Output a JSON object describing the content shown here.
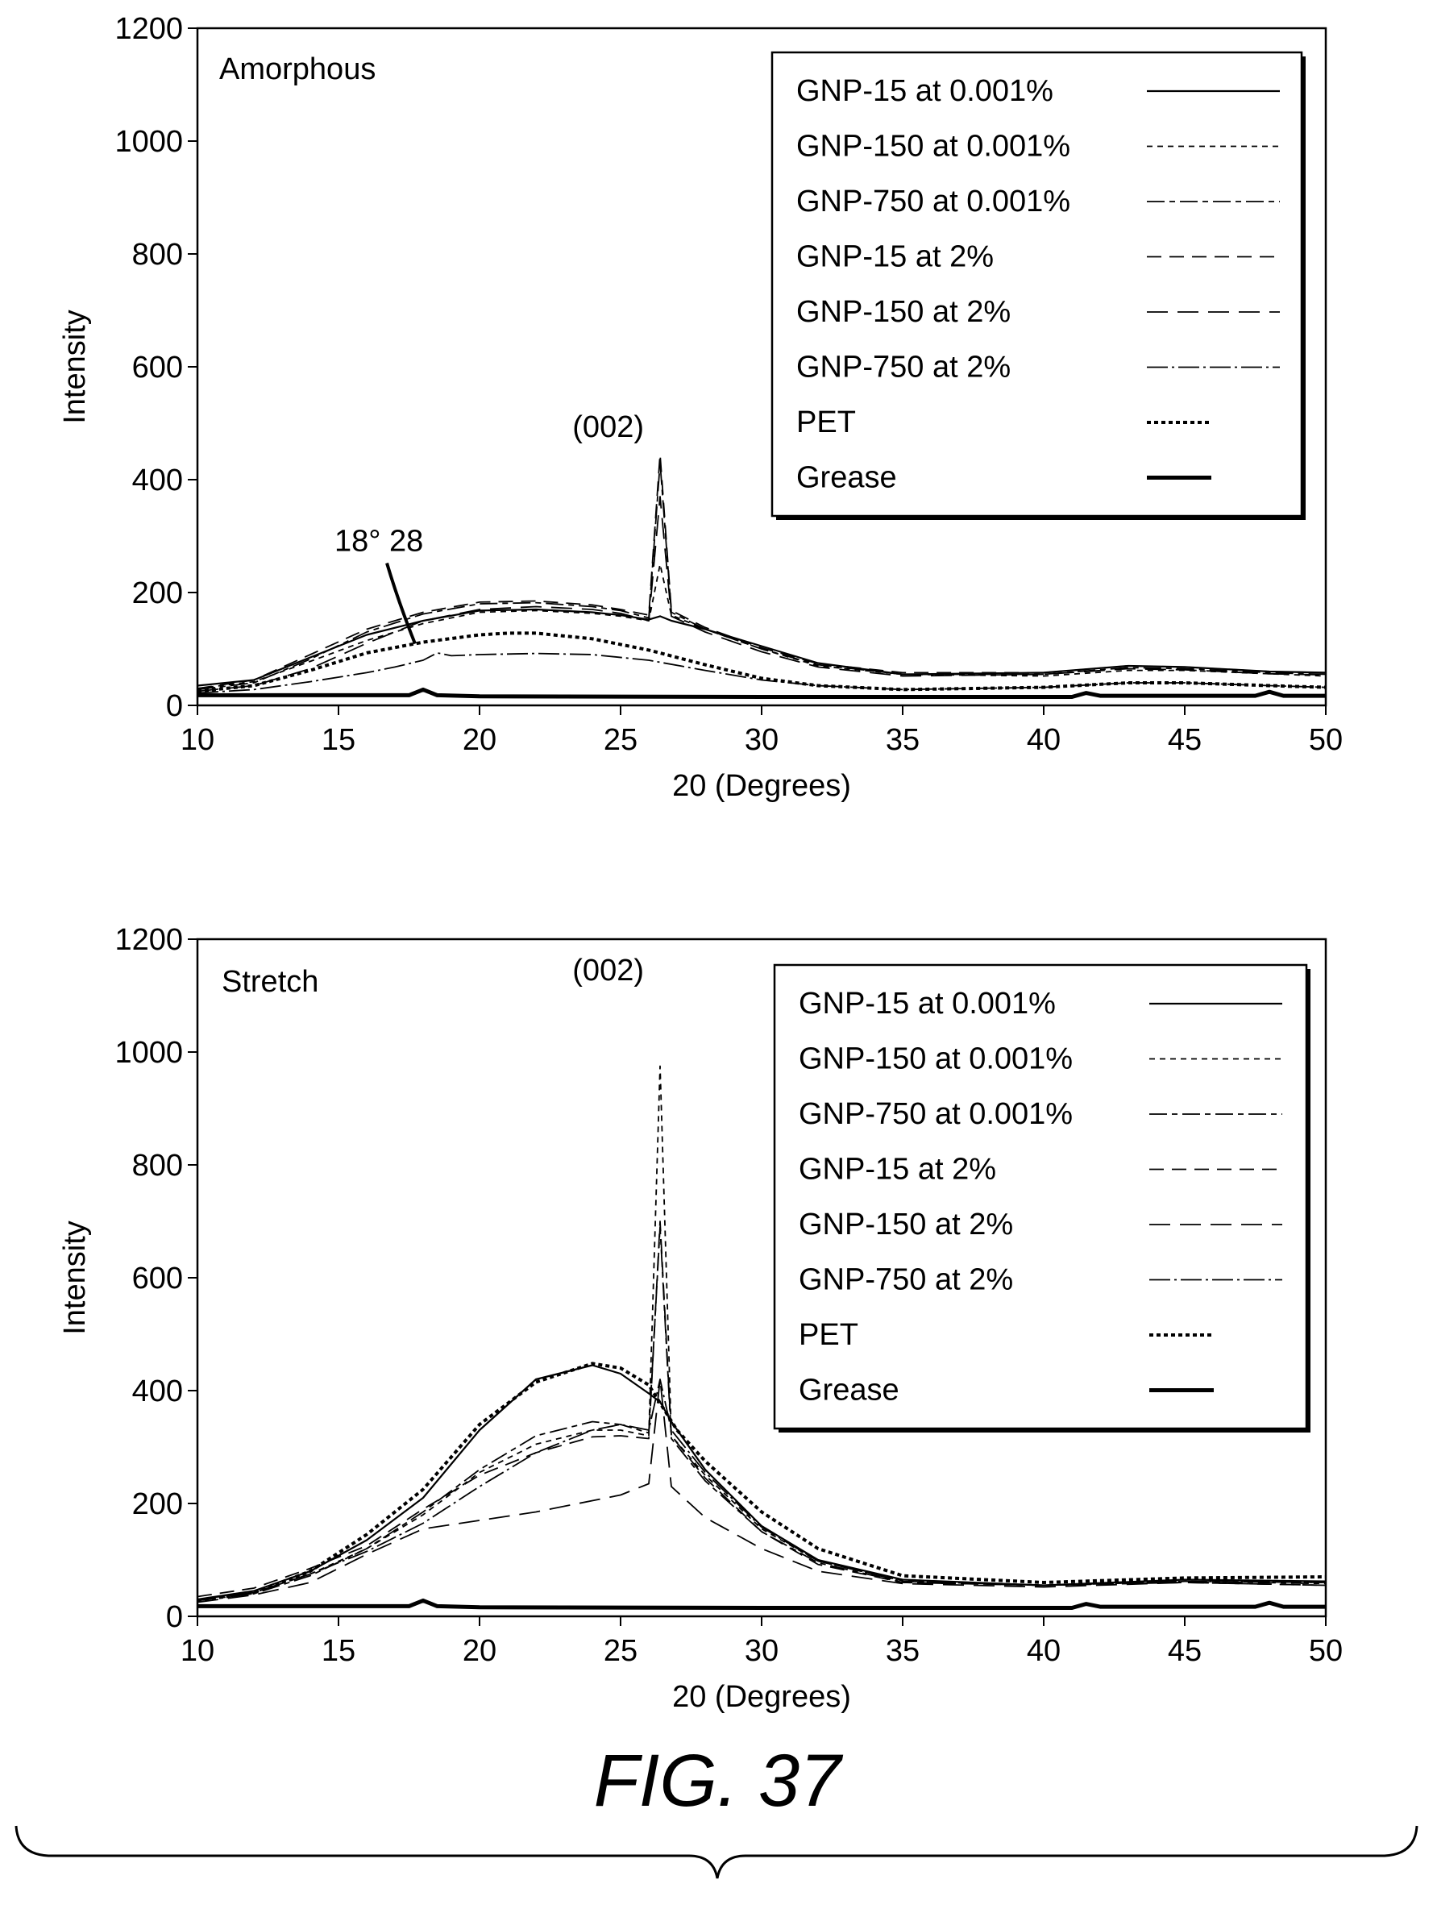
{
  "figure": {
    "caption": "FIG. 37"
  },
  "legend_entries": [
    {
      "name": "GNP-15 at 0.001%",
      "dash": "solid",
      "width": 2.2
    },
    {
      "name": "GNP-150 at 0.001%",
      "dash": "7,6",
      "width": 1.8
    },
    {
      "name": "GNP-750 at 0.001%",
      "dash": "22,6,7,6",
      "width": 1.8
    },
    {
      "name": "GNP-15 at 2%",
      "dash": "18,10",
      "width": 1.8
    },
    {
      "name": "GNP-150 at 2%",
      "dash": "26,12",
      "width": 1.8
    },
    {
      "name": "GNP-750 at 2%",
      "dash": "26,5,3,5",
      "width": 1.8
    },
    {
      "name": "PET",
      "dash": "5,4",
      "width": 4
    },
    {
      "name": "Grease",
      "dash": "solid",
      "width": 5
    }
  ],
  "chart_data": [
    {
      "type": "line",
      "panel_label": "Amorphous",
      "xlabel": "20 (Degrees)",
      "ylabel": "Intensity",
      "xlim": [
        10,
        50
      ],
      "ylim": [
        0,
        1200
      ],
      "x_ticks": [
        "10",
        "15",
        "20",
        "25",
        "30",
        "35",
        "40",
        "45",
        "50"
      ],
      "y_ticks": [
        "0",
        "200",
        "400",
        "600",
        "800",
        "1000",
        "1200"
      ],
      "annotations": [
        {
          "text": "18° 28",
          "x": 18,
          "y": 95
        },
        {
          "text": "(002)",
          "x": 26.4,
          "y": 440
        }
      ],
      "series": [
        {
          "name": "GNP-15 at 0.001%",
          "x": [
            10,
            12,
            14,
            16,
            18,
            20,
            22,
            24,
            25,
            26,
            26.4,
            26.8,
            28,
            30,
            32,
            35,
            40,
            43,
            45,
            48,
            50
          ],
          "y": [
            35,
            45,
            85,
            125,
            150,
            168,
            170,
            165,
            160,
            152,
            158,
            150,
            135,
            105,
            75,
            55,
            58,
            70,
            68,
            60,
            58
          ]
        },
        {
          "name": "GNP-150 at 0.001%",
          "x": [
            10,
            12,
            14,
            16,
            18,
            20,
            22,
            24,
            25,
            26,
            26.4,
            26.8,
            28,
            30,
            32,
            35,
            40,
            43,
            45,
            48,
            50
          ],
          "y": [
            30,
            42,
            78,
            115,
            145,
            165,
            168,
            163,
            158,
            150,
            250,
            160,
            135,
            100,
            70,
            55,
            52,
            62,
            62,
            56,
            52
          ]
        },
        {
          "name": "GNP-750 at 0.001%",
          "x": [
            10,
            12,
            14,
            16,
            18,
            20,
            22,
            24,
            25,
            26,
            26.4,
            26.8,
            28,
            30,
            32,
            35,
            40,
            43,
            45,
            48,
            50
          ],
          "y": [
            28,
            40,
            82,
            130,
            162,
            180,
            182,
            175,
            168,
            155,
            430,
            165,
            135,
            100,
            72,
            55,
            55,
            67,
            65,
            58,
            55
          ]
        },
        {
          "name": "GNP-15 at 2%",
          "x": [
            10,
            12,
            14,
            16,
            18,
            20,
            22,
            24,
            25,
            26,
            26.4,
            26.8,
            28,
            30,
            32,
            35,
            40,
            43,
            45,
            48,
            50
          ],
          "y": [
            30,
            45,
            90,
            135,
            165,
            183,
            185,
            178,
            170,
            160,
            445,
            168,
            138,
            102,
            74,
            58,
            58,
            70,
            68,
            60,
            58
          ]
        },
        {
          "name": "GNP-150 at 2%",
          "x": [
            10,
            12,
            14,
            16,
            18,
            20,
            22,
            24,
            25,
            26,
            26.4,
            26.8,
            28,
            30,
            32,
            35,
            40,
            43,
            45,
            48,
            50
          ],
          "y": [
            25,
            35,
            65,
            110,
            150,
            170,
            175,
            170,
            163,
            150,
            370,
            158,
            130,
            95,
            68,
            52,
            55,
            65,
            63,
            56,
            54
          ]
        },
        {
          "name": "GNP-750 at 2%",
          "x": [
            10,
            12,
            14,
            16,
            17,
            18,
            18.5,
            19,
            20,
            22,
            24,
            26,
            28,
            30,
            32,
            35,
            40,
            43,
            45,
            48,
            50
          ],
          "y": [
            22,
            28,
            42,
            58,
            68,
            80,
            93,
            88,
            90,
            92,
            90,
            80,
            62,
            45,
            35,
            28,
            32,
            40,
            40,
            35,
            32
          ]
        },
        {
          "name": "PET",
          "x": [
            10,
            12,
            14,
            16,
            18,
            20,
            21,
            22,
            24,
            26,
            28,
            30,
            32,
            35,
            40,
            43,
            45,
            48,
            50
          ],
          "y": [
            25,
            35,
            62,
            93,
            112,
            125,
            128,
            128,
            118,
            98,
            72,
            48,
            35,
            28,
            32,
            40,
            40,
            35,
            32
          ]
        },
        {
          "name": "Grease",
          "x": [
            10,
            15,
            17.5,
            18,
            18.5,
            20,
            30,
            40,
            41,
            41.5,
            42,
            45,
            47.5,
            48,
            48.5,
            50
          ],
          "y": [
            18,
            18,
            18,
            28,
            18,
            16,
            15,
            15,
            15,
            22,
            17,
            17,
            17,
            24,
            17,
            17
          ]
        }
      ]
    },
    {
      "type": "line",
      "panel_label": "Stretch",
      "xlabel": "20 (Degrees)",
      "ylabel": "Intensity",
      "xlim": [
        10,
        50
      ],
      "ylim": [
        0,
        1200
      ],
      "x_ticks": [
        "10",
        "15",
        "20",
        "25",
        "30",
        "35",
        "40",
        "45",
        "50"
      ],
      "y_ticks": [
        "0",
        "200",
        "400",
        "600",
        "800",
        "1000",
        "1200"
      ],
      "annotations": [
        {
          "text": "(002)",
          "x": 26.4,
          "y": 970
        }
      ],
      "series": [
        {
          "name": "GNP-15 at 0.001%",
          "x": [
            10,
            12,
            14,
            16,
            18,
            20,
            22,
            24,
            25,
            26,
            26.4,
            26.8,
            28,
            30,
            32,
            35,
            40,
            45,
            50
          ],
          "y": [
            30,
            45,
            80,
            135,
            210,
            330,
            420,
            445,
            430,
            395,
            380,
            345,
            260,
            160,
            100,
            65,
            55,
            65,
            62
          ]
        },
        {
          "name": "GNP-150 at 0.001%",
          "x": [
            10,
            12,
            14,
            16,
            18,
            20,
            22,
            24,
            25,
            26,
            26.4,
            26.8,
            28,
            30,
            32,
            35,
            40,
            45,
            50
          ],
          "y": [
            30,
            42,
            75,
            120,
            180,
            255,
            305,
            330,
            330,
            320,
            975,
            320,
            250,
            155,
            98,
            63,
            55,
            62,
            60
          ]
        },
        {
          "name": "GNP-750 at 0.001%",
          "x": [
            10,
            12,
            14,
            16,
            18,
            20,
            22,
            24,
            25,
            26,
            26.4,
            26.8,
            28,
            30,
            32,
            35,
            40,
            45,
            50
          ],
          "y": [
            28,
            40,
            72,
            120,
            185,
            260,
            320,
            345,
            340,
            325,
            690,
            315,
            240,
            150,
            95,
            60,
            55,
            62,
            58
          ]
        },
        {
          "name": "GNP-15 at 2%",
          "x": [
            10,
            12,
            14,
            16,
            18,
            20,
            22,
            24,
            25,
            26,
            26.4,
            26.8,
            28,
            30,
            32,
            35,
            40,
            45,
            50
          ],
          "y": [
            35,
            50,
            85,
            125,
            190,
            250,
            290,
            318,
            320,
            315,
            700,
            320,
            245,
            150,
            92,
            60,
            55,
            60,
            55
          ]
        },
        {
          "name": "GNP-150 at 2%",
          "x": [
            10,
            12,
            14,
            16,
            18,
            20,
            22,
            24,
            25,
            26,
            26.4,
            26.8,
            28,
            30,
            32,
            35,
            40,
            45,
            50
          ],
          "y": [
            25,
            38,
            60,
            110,
            155,
            170,
            185,
            205,
            215,
            235,
            420,
            230,
            175,
            120,
            80,
            58,
            52,
            60,
            55
          ]
        },
        {
          "name": "GNP-750 at 2%",
          "x": [
            10,
            12,
            14,
            16,
            18,
            20,
            22,
            24,
            25,
            26,
            26.4,
            26.8,
            28,
            30,
            32,
            35,
            40,
            45,
            50
          ],
          "y": [
            30,
            42,
            75,
            115,
            165,
            230,
            290,
            330,
            340,
            330,
            420,
            330,
            255,
            158,
            98,
            62,
            55,
            62,
            60
          ]
        },
        {
          "name": "PET",
          "x": [
            10,
            12,
            14,
            16,
            18,
            20,
            22,
            24,
            25,
            26,
            27,
            28,
            30,
            32,
            35,
            40,
            45,
            50
          ],
          "y": [
            28,
            42,
            80,
            145,
            225,
            340,
            415,
            448,
            440,
            410,
            330,
            275,
            185,
            120,
            72,
            60,
            68,
            70
          ]
        },
        {
          "name": "Grease",
          "x": [
            10,
            15,
            17.5,
            18,
            18.5,
            20,
            30,
            40,
            41,
            41.5,
            42,
            45,
            47.5,
            48,
            48.5,
            50
          ],
          "y": [
            18,
            18,
            18,
            28,
            18,
            16,
            15,
            15,
            15,
            22,
            17,
            17,
            17,
            24,
            17,
            17
          ]
        }
      ]
    }
  ]
}
